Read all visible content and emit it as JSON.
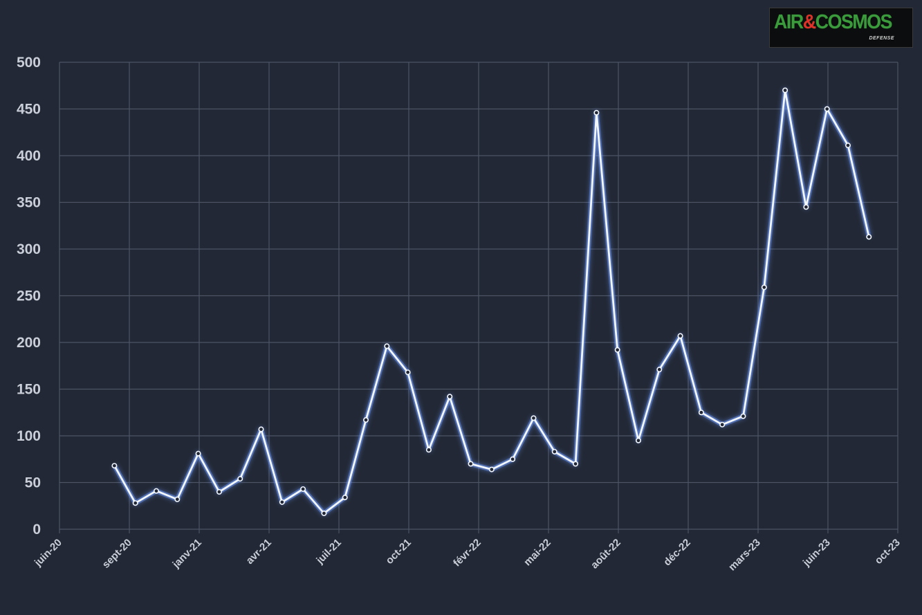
{
  "logo": {
    "part1": "AIR",
    "amp": "&",
    "part2": "COSMOS",
    "sub": "DEFENSE"
  },
  "colors": {
    "background": "#222835",
    "line": "#f2f6ff",
    "glow": "#6f9cff",
    "grid": "#4c5466",
    "text": "#c9ced8"
  },
  "chart_data": {
    "type": "line",
    "title": "",
    "xlabel": "",
    "ylabel": "",
    "ylim": [
      0,
      500
    ],
    "grid": true,
    "y_ticks": [
      0,
      50,
      100,
      150,
      200,
      250,
      300,
      350,
      400,
      450,
      500
    ],
    "x_ticks": [
      "juin-20",
      "sept-20",
      "janv-21",
      "avr-21",
      "juil-21",
      "oct-21",
      "févr-22",
      "mai-22",
      "août-22",
      "déc-22",
      "mars-23",
      "juin-23",
      "oct-23"
    ],
    "x": [
      "2020-08",
      "2020-09",
      "2020-10",
      "2020-11",
      "2020-12",
      "2021-01",
      "2021-02",
      "2021-03",
      "2021-04",
      "2021-05",
      "2021-06",
      "2021-07",
      "2021-08",
      "2021-09",
      "2021-10",
      "2021-11",
      "2021-12",
      "2022-01",
      "2022-02",
      "2022-03",
      "2022-04",
      "2022-05",
      "2022-06",
      "2022-07",
      "2022-08",
      "2022-09",
      "2022-10",
      "2022-11",
      "2022-12",
      "2023-01",
      "2023-02",
      "2023-03",
      "2023-04",
      "2023-05",
      "2023-06",
      "2023-07",
      "2023-08"
    ],
    "series": [
      {
        "values": [
          68,
          28,
          41,
          32,
          81,
          40,
          54,
          107,
          29,
          43,
          17,
          34,
          117,
          196,
          168,
          85,
          142,
          70,
          64,
          75,
          119,
          83,
          70,
          446,
          192,
          95,
          171,
          207,
          125,
          112,
          121,
          259,
          470,
          345,
          450,
          411,
          313
        ]
      }
    ]
  }
}
